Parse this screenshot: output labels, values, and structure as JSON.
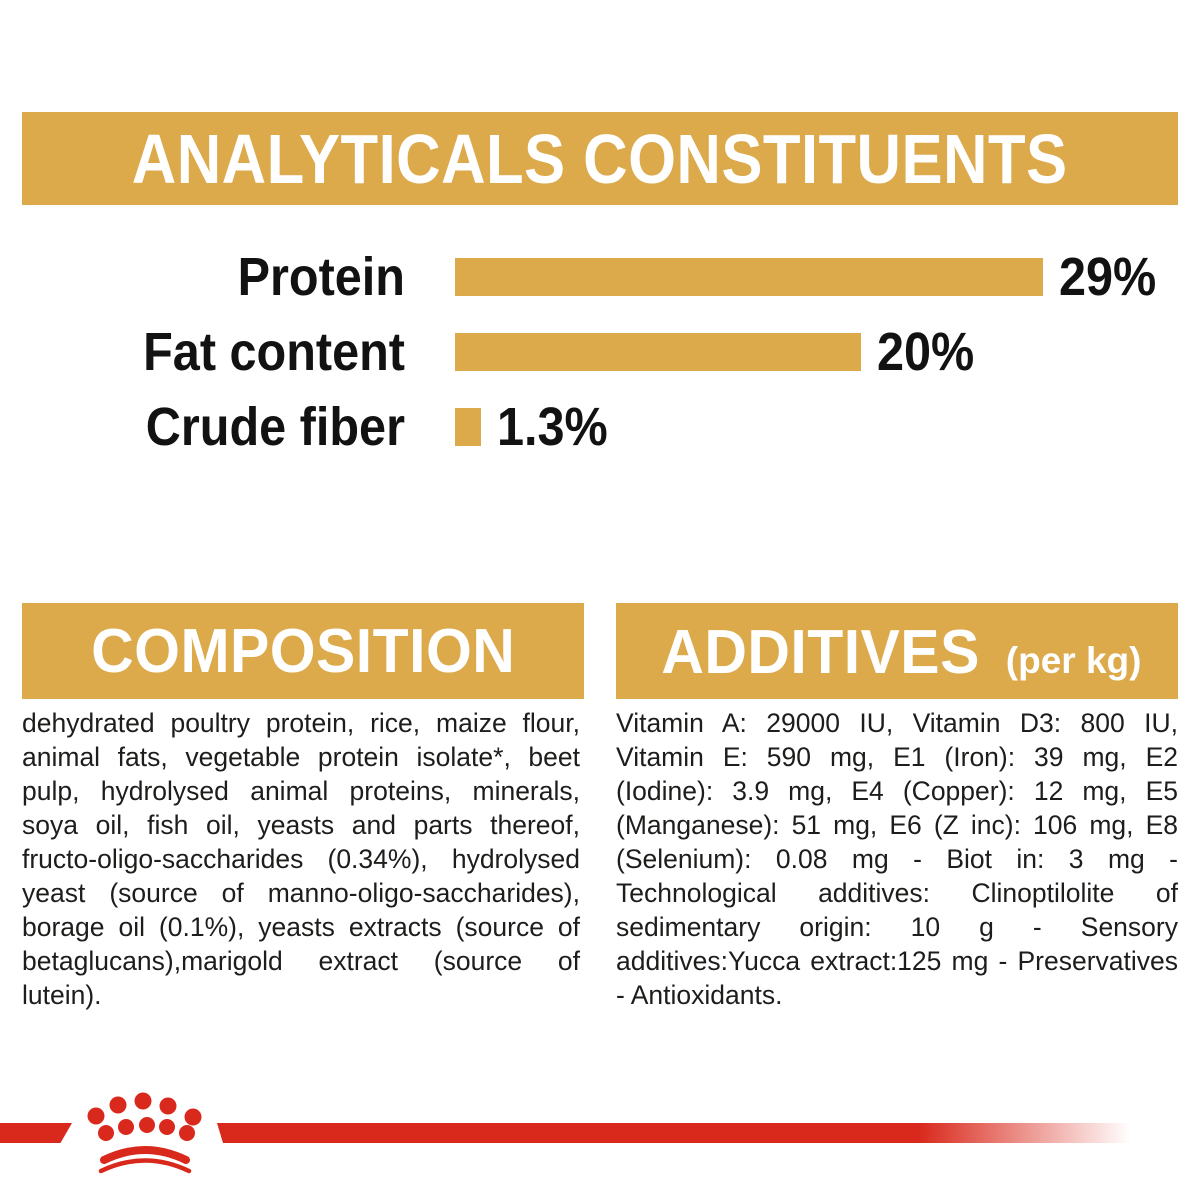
{
  "theme": {
    "accent_gold": "#DCA94B",
    "brand_red": "#D9291C",
    "text_color": "#1d1d1b",
    "banner_text_color": "#ffffff"
  },
  "analyticals": {
    "title": "ANALYTICALS CONSTITUENTS"
  },
  "chart_data": {
    "type": "bar",
    "orientation": "horizontal",
    "title": "ANALYTICALS CONSTITUENTS",
    "categories": [
      "Protein",
      "Fat content",
      "Crude fiber"
    ],
    "values": [
      29,
      20,
      1.3
    ],
    "value_labels": [
      "29%",
      "20%",
      "1.3%"
    ],
    "unit": "%",
    "xlim": [
      0,
      29
    ],
    "bar_color": "#DCA94B",
    "axes_hidden": true,
    "value_label_position": "right-of-bar"
  },
  "composition": {
    "title": "COMPOSITION",
    "body": "dehydrated poultry protein, rice, maize flour, animal fats, vegetable protein isolate*, beet pulp, hydrolysed animal proteins, minerals, soya oil, fish oil, yeasts and parts thereof, fructo-oligo-saccharides (0.34%), hydrolysed yeast (source of manno-oligo-saccharides), borage oil (0.1%), yeasts extracts (source of betaglucans),marigold extract (source of lutein)."
  },
  "additives": {
    "title": "ADDITIVES",
    "unit_note": "(per kg)",
    "body": "Vitamin A: 29000 IU, Vitamin D3: 800 IU, Vitamin E: 590 mg, E1 (Iron): 39 mg, E2 (Iodine): 3.9 mg, E4 (Copper): 12 mg, E5 (Manganese): 51 mg, E6 (Z inc): 106 mg, E8 (Selenium): 0.08 mg - Biot in: 3 mg - Technological additives: Clinoptilolite of sedimentary origin: 10 g - Sensory additives:Yucca extract:125 mg - Preservatives - Antioxidants."
  },
  "footer": {
    "logo_icon": "royal-canin-crown-icon"
  }
}
